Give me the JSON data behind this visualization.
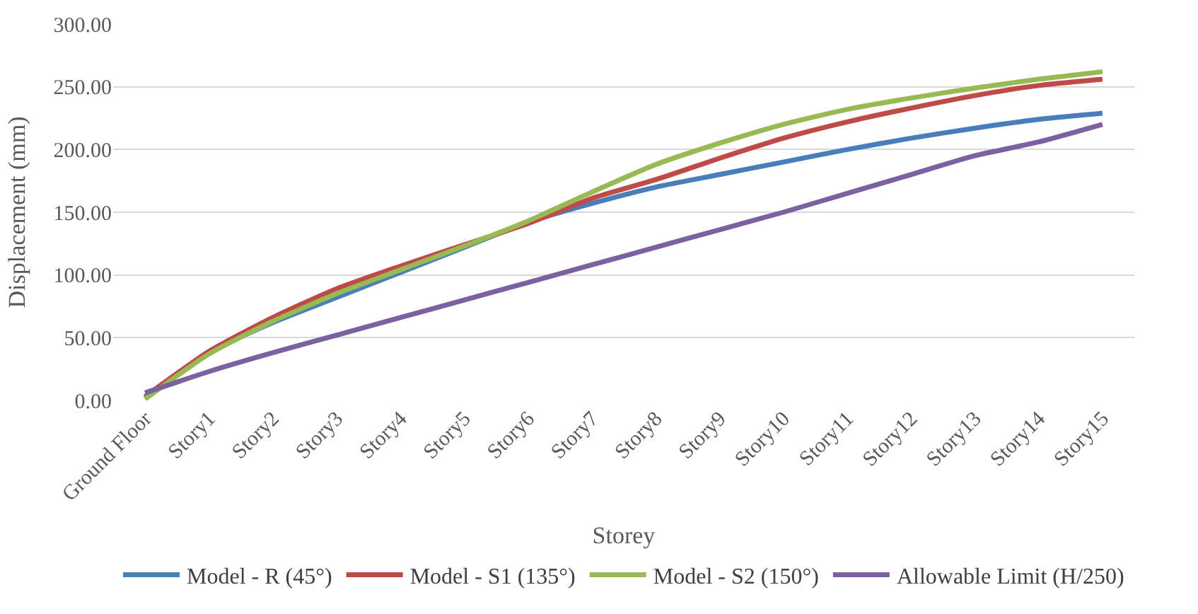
{
  "chart_data": {
    "type": "line",
    "xlabel": "Storey",
    "ylabel": "Displacement (mm)",
    "categories": [
      "Ground Floor",
      "Story1",
      "Story2",
      "Story3",
      "Story4",
      "Story5",
      "Story6",
      "Story7",
      "Story8",
      "Story9",
      "Story10",
      "Story11",
      "Story12",
      "Story13",
      "Story14",
      "Story15"
    ],
    "series": [
      {
        "name": "Model - R (45°)",
        "color": "#4a7ebb",
        "values": [
          2,
          38,
          62,
          82,
          102,
          122,
          142,
          157,
          170,
          180,
          190,
          200,
          209,
          217,
          224,
          229
        ]
      },
      {
        "name": "Model - S1 (135°)",
        "color": "#be4b48",
        "values": [
          3,
          39,
          66,
          89,
          107,
          124,
          141,
          161,
          176,
          193,
          209,
          222,
          233,
          243,
          251,
          256
        ]
      },
      {
        "name": "Model - S2 (150°)",
        "color": "#98b954",
        "values": [
          1,
          37,
          63,
          85,
          104,
          123,
          143,
          166,
          188,
          205,
          220,
          232,
          241,
          249,
          256,
          262
        ]
      },
      {
        "name": "Allowable Limit (H/250)",
        "color": "#7d60a0",
        "values": [
          6,
          23,
          38,
          52,
          66,
          80,
          94,
          108,
          122,
          136,
          150,
          165,
          180,
          195,
          206,
          220
        ]
      }
    ],
    "ylim": [
      0,
      300
    ],
    "yticks": [
      {
        "value": 0,
        "label": "0.00"
      },
      {
        "value": 50,
        "label": "50.00"
      },
      {
        "value": 100,
        "label": "100.00"
      },
      {
        "value": 150,
        "label": "150.00"
      },
      {
        "value": 200,
        "label": "200.00"
      },
      {
        "value": 250,
        "label": "250.00"
      },
      {
        "value": 300,
        "label": "300.00"
      }
    ],
    "grid": "y",
    "legend": "bottom",
    "marker": "none",
    "line_style": "solid"
  }
}
